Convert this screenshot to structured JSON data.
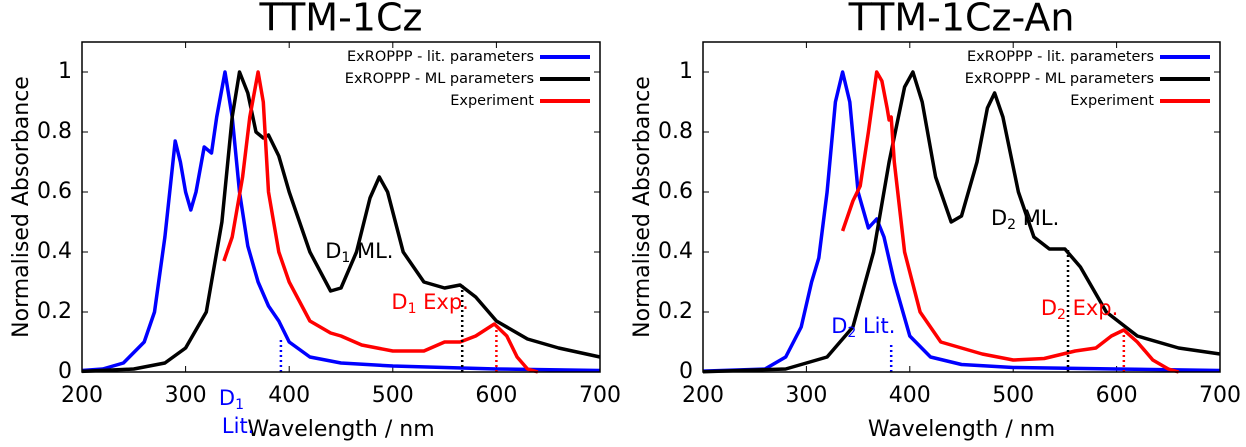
{
  "chart_data": [
    {
      "type": "line",
      "title": "TTM-1Cz",
      "xlabel": "Wavelength / nm",
      "ylabel": "Normalised Absorbance",
      "xlim": [
        200,
        700
      ],
      "ylim": [
        0,
        1.1
      ],
      "xticks": [
        200,
        300,
        400,
        500,
        600,
        700
      ],
      "yticks": [
        0,
        0.2,
        0.4,
        0.6,
        0.8,
        1
      ],
      "legend": "upper right",
      "series": [
        {
          "name": "ExROPPP - lit. parameters",
          "color": "#0000ff",
          "x": [
            200,
            220,
            240,
            260,
            270,
            280,
            290,
            295,
            300,
            305,
            310,
            318,
            325,
            330,
            338,
            345,
            352,
            360,
            370,
            380,
            390,
            400,
            420,
            450,
            500,
            600,
            700
          ],
          "values": [
            0.005,
            0.01,
            0.03,
            0.1,
            0.2,
            0.45,
            0.77,
            0.7,
            0.6,
            0.54,
            0.6,
            0.75,
            0.73,
            0.85,
            1.0,
            0.85,
            0.6,
            0.42,
            0.3,
            0.22,
            0.17,
            0.1,
            0.05,
            0.03,
            0.02,
            0.01,
            0.005
          ]
        },
        {
          "name": "ExROPPP - ML parameters",
          "color": "#000000",
          "x": [
            200,
            250,
            280,
            300,
            320,
            335,
            345,
            352,
            360,
            368,
            375,
            380,
            390,
            400,
            420,
            440,
            450,
            465,
            478,
            487,
            495,
            510,
            530,
            550,
            565,
            580,
            600,
            630,
            660,
            700
          ],
          "values": [
            0.002,
            0.01,
            0.03,
            0.08,
            0.2,
            0.5,
            0.85,
            1.0,
            0.93,
            0.8,
            0.78,
            0.79,
            0.72,
            0.6,
            0.4,
            0.27,
            0.28,
            0.4,
            0.58,
            0.65,
            0.6,
            0.4,
            0.3,
            0.28,
            0.29,
            0.25,
            0.17,
            0.11,
            0.08,
            0.05
          ]
        },
        {
          "name": "Experiment",
          "color": "#ff0000",
          "x": [
            337,
            345,
            355,
            362,
            370,
            375,
            380,
            390,
            400,
            420,
            440,
            450,
            470,
            500,
            530,
            550,
            565,
            580,
            598,
            610,
            620,
            630,
            640
          ],
          "values": [
            0.37,
            0.45,
            0.65,
            0.85,
            1.0,
            0.9,
            0.6,
            0.4,
            0.3,
            0.17,
            0.13,
            0.12,
            0.09,
            0.07,
            0.07,
            0.1,
            0.1,
            0.12,
            0.16,
            0.12,
            0.05,
            0.01,
            0.0
          ]
        }
      ],
      "annotations": [
        {
          "text": "D",
          "sub": "1",
          "suffix": "Lit.",
          "color": "#0000ff",
          "x": 392,
          "y": 0.11
        },
        {
          "text": "D",
          "sub": "1",
          "suffix": " ML.",
          "color": "#000000",
          "x": 567,
          "y": 0.29
        },
        {
          "text": "D",
          "sub": "1",
          "suffix": " Exp.",
          "color": "#ff0000",
          "x": 600,
          "y": 0.16
        }
      ]
    },
    {
      "type": "line",
      "title": "TTM-1Cz-An",
      "xlabel": "Wavelength / nm",
      "ylabel": "Normalised Absorbance",
      "xlim": [
        200,
        700
      ],
      "ylim": [
        0,
        1.1
      ],
      "xticks": [
        200,
        300,
        400,
        500,
        600,
        700
      ],
      "yticks": [
        0,
        0.2,
        0.4,
        0.6,
        0.8,
        1
      ],
      "legend": "upper right",
      "series": [
        {
          "name": "ExROPPP - lit. parameters",
          "color": "#0000ff",
          "x": [
            200,
            260,
            280,
            295,
            305,
            312,
            320,
            328,
            335,
            342,
            350,
            360,
            368,
            375,
            385,
            400,
            420,
            450,
            500,
            600,
            700
          ],
          "values": [
            0.003,
            0.01,
            0.05,
            0.15,
            0.3,
            0.38,
            0.6,
            0.9,
            1.0,
            0.9,
            0.6,
            0.48,
            0.51,
            0.45,
            0.3,
            0.12,
            0.05,
            0.025,
            0.015,
            0.01,
            0.005
          ]
        },
        {
          "name": "ExROPPP - ML parameters",
          "color": "#000000",
          "x": [
            200,
            280,
            320,
            345,
            365,
            380,
            395,
            403,
            412,
            425,
            440,
            450,
            465,
            475,
            482,
            490,
            505,
            520,
            535,
            550,
            565,
            590,
            620,
            660,
            700
          ],
          "values": [
            0.001,
            0.01,
            0.05,
            0.15,
            0.4,
            0.7,
            0.95,
            1.0,
            0.9,
            0.65,
            0.5,
            0.52,
            0.7,
            0.88,
            0.93,
            0.85,
            0.6,
            0.45,
            0.41,
            0.41,
            0.35,
            0.2,
            0.12,
            0.08,
            0.06
          ]
        },
        {
          "name": "Experiment",
          "color": "#ff0000",
          "x": [
            335,
            345,
            352,
            360,
            368,
            373,
            378,
            380,
            382,
            385,
            395,
            410,
            430,
            450,
            470,
            500,
            530,
            560,
            580,
            595,
            607,
            620,
            635,
            650,
            660
          ],
          "values": [
            0.47,
            0.57,
            0.62,
            0.8,
            1.0,
            0.97,
            0.88,
            0.84,
            0.85,
            0.7,
            0.4,
            0.2,
            0.1,
            0.08,
            0.06,
            0.04,
            0.045,
            0.07,
            0.08,
            0.12,
            0.14,
            0.1,
            0.04,
            0.01,
            0.0
          ]
        }
      ],
      "annotations": [
        {
          "text": "D",
          "sub": "2",
          "suffix": " Lit.",
          "color": "#0000ff",
          "x": 382,
          "y": 0.1
        },
        {
          "text": "D",
          "sub": "2",
          "suffix": " ML.",
          "color": "#000000",
          "x": 553,
          "y": 0.41
        },
        {
          "text": "D",
          "sub": "2",
          "suffix": " Exp.",
          "color": "#ff0000",
          "x": 607,
          "y": 0.14
        }
      ]
    }
  ]
}
